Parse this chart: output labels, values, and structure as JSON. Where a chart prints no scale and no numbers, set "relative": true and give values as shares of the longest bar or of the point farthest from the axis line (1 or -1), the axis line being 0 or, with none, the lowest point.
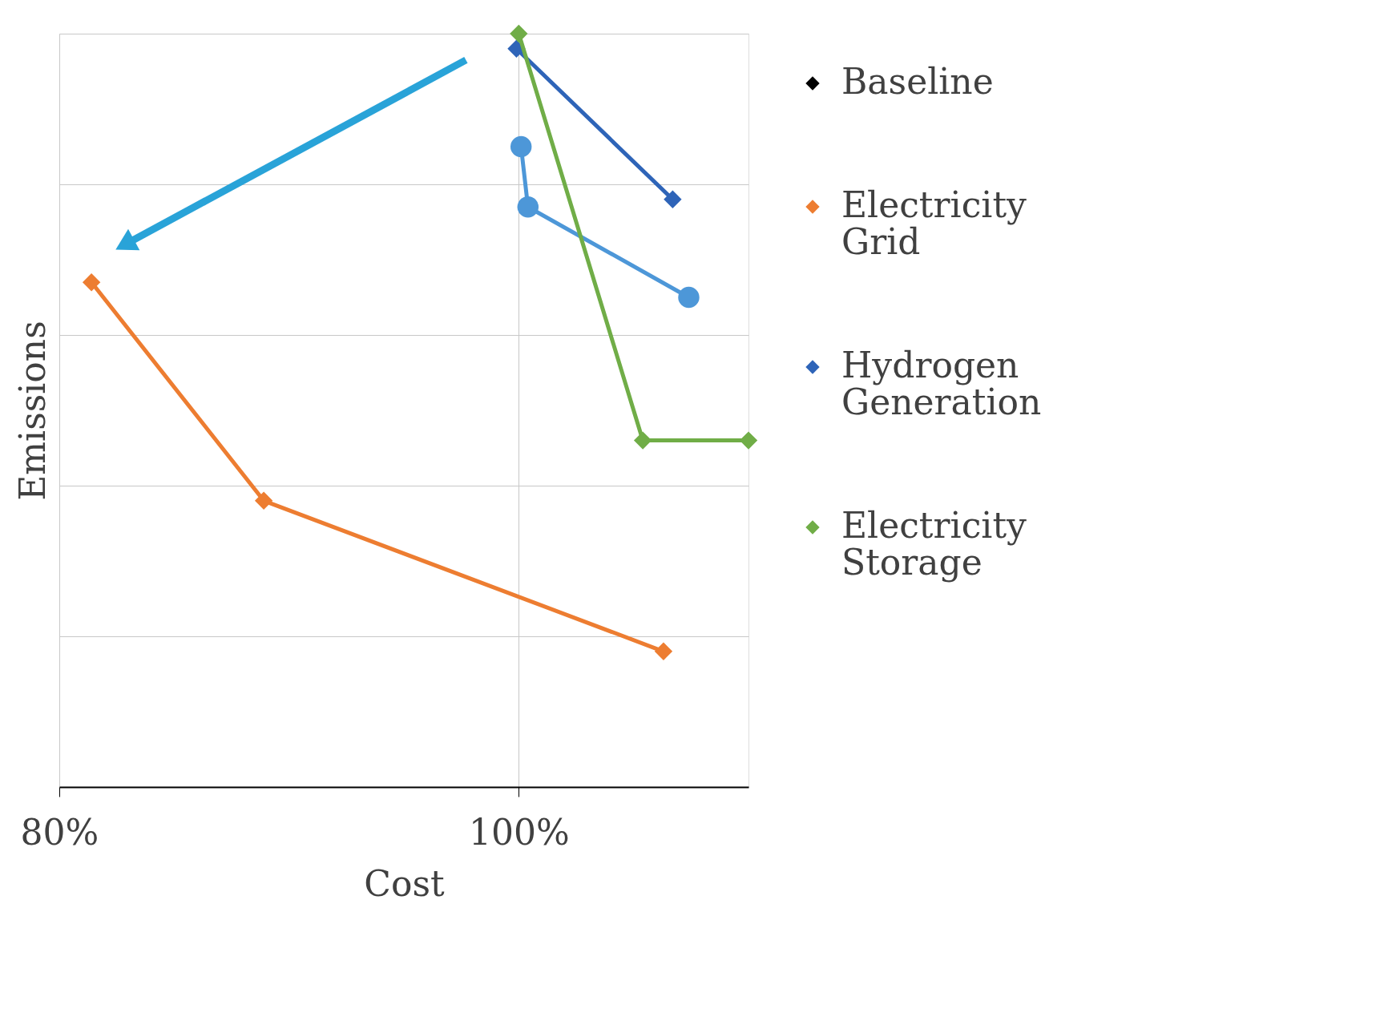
{
  "chart_data": {
    "type": "line",
    "xlabel": "Cost",
    "ylabel": "Emissions",
    "relative": true,
    "xlim": [
      80,
      110
    ],
    "xticks": [
      {
        "value": 80,
        "label": "80%"
      },
      {
        "value": 100,
        "label": "100%"
      }
    ],
    "grid": true,
    "legend": "right",
    "marker": "diamond",
    "line_style": "solid",
    "series": [
      {
        "name": "Baseline",
        "color": "#000000"
      },
      {
        "name": "Electricity Grid",
        "color": "#ed7d31",
        "x": [
          81.4,
          88.9,
          106.3
        ],
        "values": [
          0.67,
          0.38,
          0.18
        ]
      },
      {
        "name": "Hydrogen Generation",
        "color": "#2e64b8",
        "x": [
          99.9,
          106.7
        ],
        "values": [
          0.98,
          0.78
        ]
      },
      {
        "color": "#4d97d8",
        "marker": "circle",
        "x": [
          100.1,
          100.4,
          107.4
        ],
        "values": [
          0.85,
          0.77,
          0.65
        ]
      },
      {
        "name": "Electricity Storage",
        "color": "#70ad47",
        "x": [
          100,
          105.4,
          110
        ],
        "values": [
          1.0,
          0.46,
          0.46
        ]
      }
    ]
  }
}
